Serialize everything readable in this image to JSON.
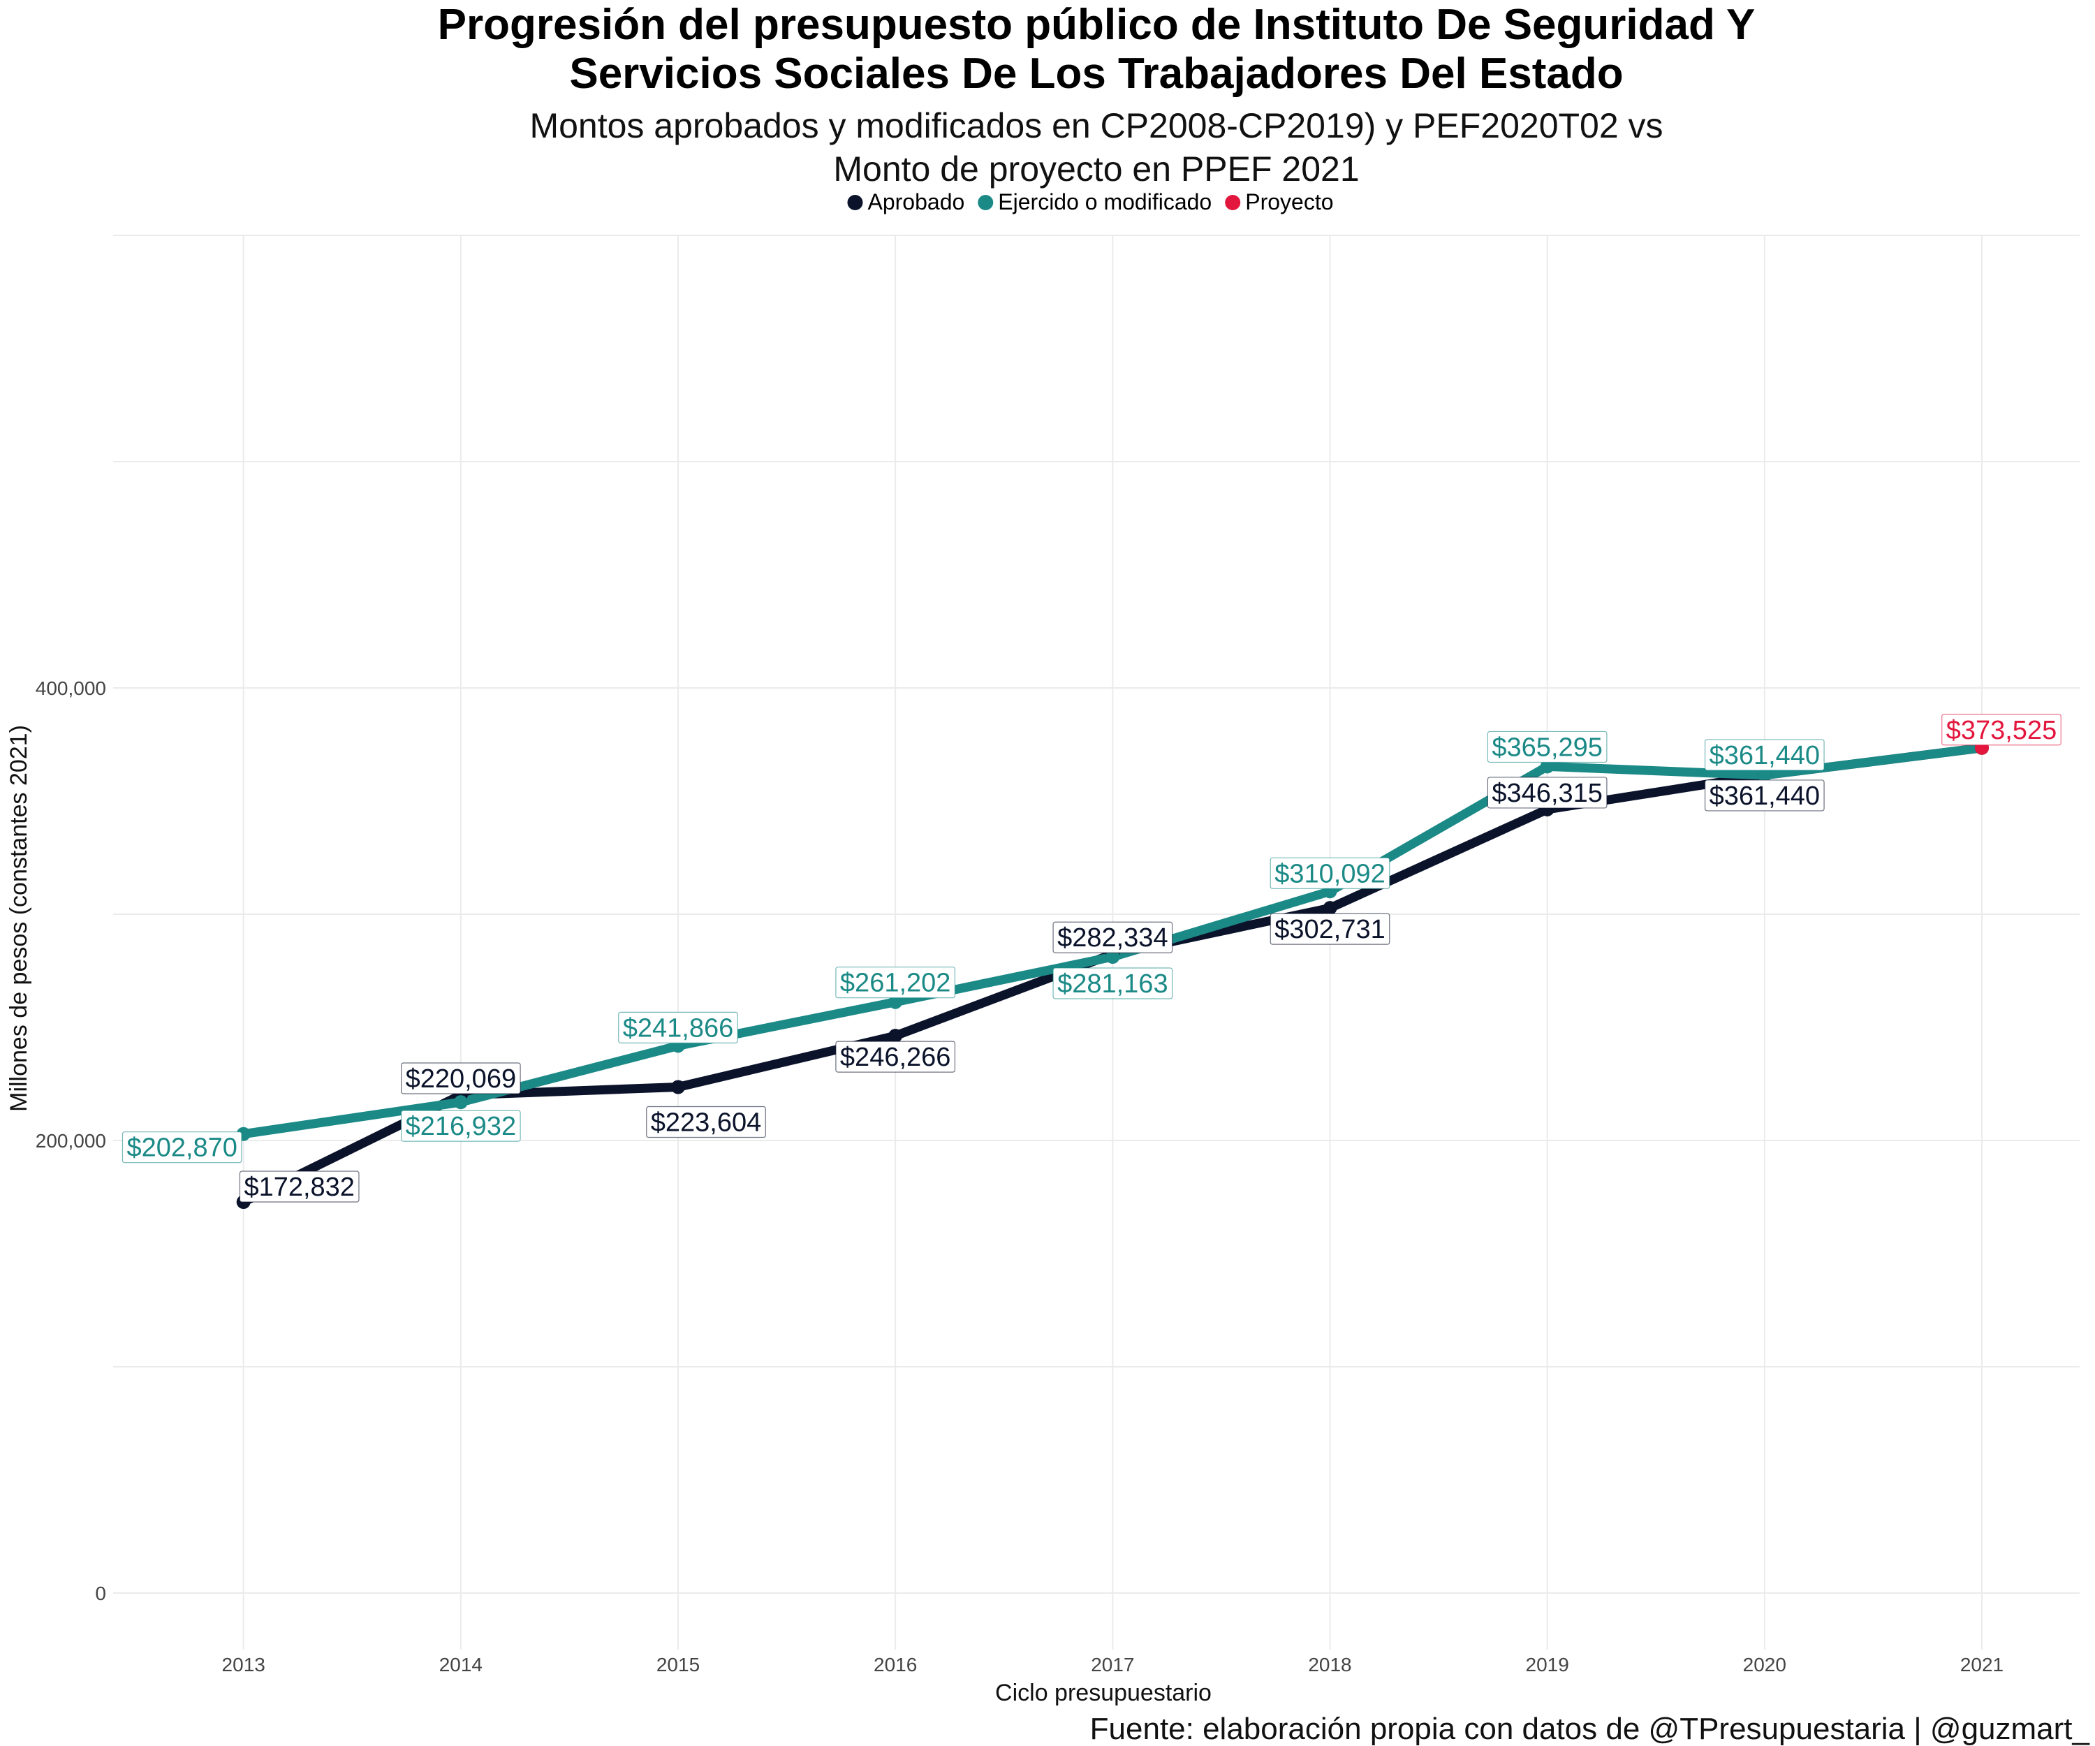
{
  "chart_data": {
    "type": "line",
    "title_lines": [
      "Progresión del presupuesto público de Instituto De Seguridad Y",
      "Servicios Sociales De Los Trabajadores Del Estado"
    ],
    "subtitle_lines": [
      "Montos aprobados y modificados en CP2008-CP2019) y PEF2020T02 vs",
      "Monto de proyecto en PPEF 2021"
    ],
    "xlabel": "Ciclo presupuestario",
    "ylabel": "Millones de pesos (constantes 2021)",
    "caption": "Fuente: elaboración propia con datos de @TPresupuestaria | @guzmart_",
    "x": [
      2013,
      2014,
      2015,
      2016,
      2017,
      2018,
      2019,
      2020,
      2021
    ],
    "x_tick_labels": [
      "2013",
      "2014",
      "2015",
      "2016",
      "2017",
      "2018",
      "2019",
      "2020",
      "2021"
    ],
    "ylim": [
      -25000,
      600000
    ],
    "y_ticks": [
      0,
      200000,
      400000
    ],
    "y_tick_labels": [
      "0",
      "200,000",
      "400,000"
    ],
    "grid": true,
    "legend_position": "top",
    "legend": [
      {
        "name": "Aprobado",
        "color": "#0b132b"
      },
      {
        "name": "Ejercido o modificado",
        "color": "#1b8a87"
      },
      {
        "name": "Proyecto",
        "color": "#e3173e"
      }
    ],
    "series": [
      {
        "name": "Aprobado",
        "color": "#0b132b",
        "x": [
          2013,
          2014,
          2015,
          2016,
          2017,
          2018,
          2019,
          2020,
          2021
        ],
        "values": [
          172832,
          220069,
          223604,
          246266,
          282334,
          302731,
          346315,
          361440,
          373525
        ],
        "labels": [
          "$172,832",
          "$220,069",
          "$223,604",
          "$246,266",
          "$282,334",
          "$302,731",
          "$346,315",
          "$361,440",
          null
        ]
      },
      {
        "name": "Ejercido o modificado",
        "color": "#1b8a87",
        "x": [
          2013,
          2014,
          2015,
          2016,
          2017,
          2018,
          2019,
          2020,
          2021
        ],
        "values": [
          202870,
          216932,
          241866,
          261202,
          281163,
          310092,
          365295,
          361440,
          373525
        ],
        "labels": [
          "$202,870",
          "$216,932",
          "$241,866",
          "$261,202",
          "$281,163",
          "$310,092",
          "$365,295",
          "$361,440",
          null
        ]
      },
      {
        "name": "Proyecto",
        "color": "#e3173e",
        "x": [
          2021
        ],
        "values": [
          373525
        ],
        "labels": [
          "$373,525"
        ]
      }
    ]
  }
}
